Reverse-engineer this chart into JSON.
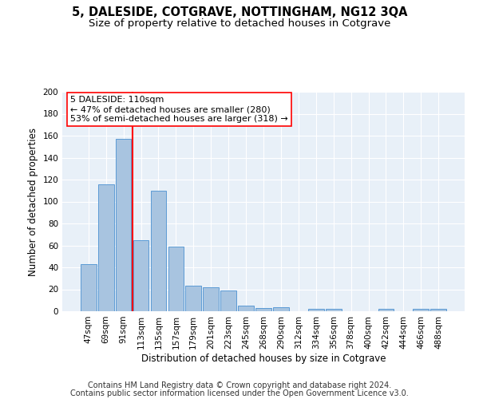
{
  "title": "5, DALESIDE, COTGRAVE, NOTTINGHAM, NG12 3QA",
  "subtitle": "Size of property relative to detached houses in Cotgrave",
  "xlabel": "Distribution of detached houses by size in Cotgrave",
  "ylabel": "Number of detached properties",
  "categories": [
    "47sqm",
    "69sqm",
    "91sqm",
    "113sqm",
    "135sqm",
    "157sqm",
    "179sqm",
    "201sqm",
    "223sqm",
    "245sqm",
    "268sqm",
    "290sqm",
    "312sqm",
    "334sqm",
    "356sqm",
    "378sqm",
    "400sqm",
    "422sqm",
    "444sqm",
    "466sqm",
    "488sqm"
  ],
  "values": [
    43,
    116,
    157,
    65,
    110,
    59,
    23,
    22,
    19,
    5,
    3,
    4,
    0,
    2,
    2,
    0,
    0,
    2,
    0,
    2,
    2
  ],
  "bar_color": "#a8c4e0",
  "bar_edge_color": "#5b9bd5",
  "vline_color": "red",
  "annotation_line1": "5 DALESIDE: 110sqm",
  "annotation_line2": "← 47% of detached houses are smaller (280)",
  "annotation_line3": "53% of semi-detached houses are larger (318) →",
  "annotation_box_color": "white",
  "annotation_box_edge": "red",
  "ylim": [
    0,
    200
  ],
  "yticks": [
    0,
    20,
    40,
    60,
    80,
    100,
    120,
    140,
    160,
    180,
    200
  ],
  "background_color": "#e8f0f8",
  "footer_line1": "Contains HM Land Registry data © Crown copyright and database right 2024.",
  "footer_line2": "Contains public sector information licensed under the Open Government Licence v3.0.",
  "title_fontsize": 10.5,
  "subtitle_fontsize": 9.5,
  "xlabel_fontsize": 8.5,
  "ylabel_fontsize": 8.5,
  "tick_fontsize": 7.5,
  "annot_fontsize": 8,
  "footer_fontsize": 7
}
